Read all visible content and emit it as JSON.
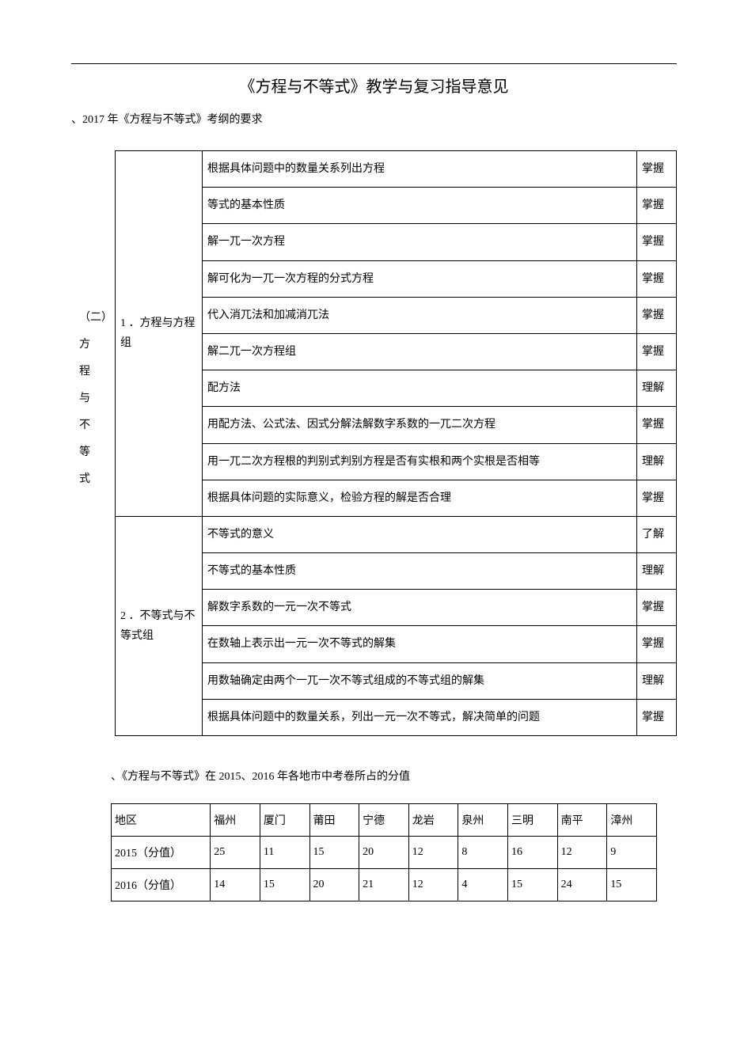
{
  "page": {
    "title": "《方程与不等式》教学与复习指导意见",
    "section1_heading": "、2017 年《方程与不等式》考纲的要求",
    "side_label_prefix": "（二）",
    "side_label_chars": [
      "方",
      "程",
      "与",
      "不",
      "等",
      "式"
    ],
    "section2_heading": "、《方程与不等式》在 2015、2016 年各地市中考卷所占的分值"
  },
  "outline": {
    "groups": [
      {
        "label": "1 ．方程与方程组",
        "items": [
          {
            "desc": "根据具体问题中的数量关系列出方程",
            "level": "掌握"
          },
          {
            "desc": "等式的基本性质",
            "level": "掌握"
          },
          {
            "desc": "解一兀一次方程",
            "level": "掌握"
          },
          {
            "desc": "解可化为一兀一次方程的分式方程",
            "level": "掌握"
          },
          {
            "desc": "代入消兀法和加减消兀法",
            "level": "掌握"
          },
          {
            "desc": "解二兀一次方程组",
            "level": "掌握"
          },
          {
            "desc": "配方法",
            "level": "理解"
          },
          {
            "desc": "用配方法、公式法、因式分解法解数字系数的一兀二次方程",
            "level": "掌握"
          },
          {
            "desc": "用一兀二次方程根的判别式判别方程是否有实根和两个实根是否相等",
            "level": "理解"
          },
          {
            "desc": "根据具体问题的实际意义，检验方程的解是否合理",
            "level": "掌握"
          }
        ]
      },
      {
        "label": "2 ．不等式与不等式组",
        "items": [
          {
            "desc": "不等式的意义",
            "level": "了解"
          },
          {
            "desc": "不等式的基本性质",
            "level": "理解"
          },
          {
            "desc": "解数字系数的一元一次不等式",
            "level": "掌握"
          },
          {
            "desc": "在数轴上表示出一元一次不等式的解集",
            "level": "掌握"
          },
          {
            "desc": "用数轴确定由两个一兀一次不等式组成的不等式组的解集",
            "level": "理解"
          },
          {
            "desc": "根据具体问题中的数量关系，列出一元一次不等式，解决简单的问题",
            "level": "掌握"
          }
        ]
      }
    ]
  },
  "scores": {
    "header_label": "地区",
    "cities": [
      "福州",
      "厦门",
      "莆田",
      "宁德",
      "龙岩",
      "泉州",
      "三明",
      "南平",
      "漳州"
    ],
    "rows": [
      {
        "label": "2015（分值）",
        "values": [
          25,
          11,
          15,
          20,
          12,
          8,
          16,
          12,
          9
        ]
      },
      {
        "label": "2016（分值）",
        "values": [
          14,
          15,
          20,
          21,
          12,
          4,
          15,
          24,
          15
        ]
      }
    ]
  },
  "style": {
    "font_family": "SimSun",
    "text_color": "#000000",
    "background_color": "#ffffff",
    "border_color": "#000000",
    "title_fontsize": 20,
    "body_fontsize": 14,
    "line_height": 1.8
  }
}
